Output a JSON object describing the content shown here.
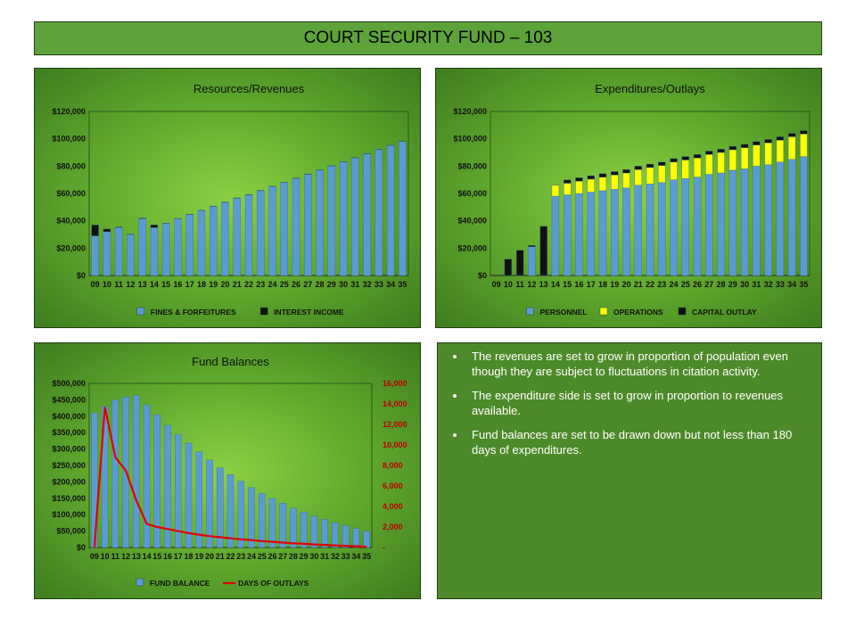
{
  "page_title": "COURT SECURITY FUND – 103",
  "notes": [
    "The revenues are set to grow in proportion  of population even though they are subject to fluctuations in citation activity.",
    "The expenditure side is set to grow in proportion  to revenues available.",
    "Fund balances are set to be drawn down but not less than 180 days of expenditures."
  ],
  "colors": {
    "blue": "#5b9bd5",
    "black": "#111111",
    "yellow": "#ffff00",
    "red": "#e00000",
    "red_axis": "#c00000"
  },
  "chart_data": [
    {
      "type": "stacked-bar",
      "title": "Resources/Revenues",
      "categories": [
        "09",
        "10",
        "11",
        "12",
        "13",
        "14",
        "15",
        "16",
        "17",
        "18",
        "19",
        "20",
        "21",
        "22",
        "23",
        "24",
        "25",
        "26",
        "27",
        "28",
        "29",
        "30",
        "31",
        "32",
        "33",
        "34",
        "35"
      ],
      "ylim": [
        0,
        120000
      ],
      "yticks": [
        0,
        20000,
        40000,
        60000,
        80000,
        100000,
        120000
      ],
      "ytick_labels": [
        "$0",
        "$20,000",
        "$40,000",
        "$60,000",
        "$80,000",
        "$100,000",
        "$120,000"
      ],
      "series": [
        {
          "name": "FINES & FORFEITURES",
          "color": "#5b9bd5",
          "values": [
            29000,
            32000,
            35000,
            30000,
            41500,
            35000,
            38000,
            41500,
            44500,
            47500,
            50500,
            53500,
            56500,
            59000,
            62000,
            65000,
            68000,
            71000,
            74000,
            77000,
            80000,
            83000,
            86000,
            89000,
            92000,
            95000,
            98000
          ]
        },
        {
          "name": "INTEREST INCOME",
          "color": "#111111",
          "values": [
            8000,
            2000,
            500,
            300,
            500,
            2000,
            300,
            300,
            300,
            300,
            300,
            300,
            300,
            300,
            300,
            300,
            300,
            300,
            300,
            300,
            300,
            300,
            300,
            300,
            300,
            300,
            300
          ]
        }
      ]
    },
    {
      "type": "stacked-bar",
      "title": "Expenditures/Outlays",
      "categories": [
        "09",
        "10",
        "11",
        "12",
        "13",
        "14",
        "15",
        "16",
        "17",
        "18",
        "19",
        "20",
        "21",
        "22",
        "23",
        "24",
        "25",
        "26",
        "27",
        "28",
        "29",
        "30",
        "31",
        "32",
        "33",
        "34",
        "35"
      ],
      "ylim": [
        0,
        120000
      ],
      "yticks": [
        0,
        20000,
        40000,
        60000,
        80000,
        100000,
        120000
      ],
      "ytick_labels": [
        "$0",
        "$20,000",
        "$40,000",
        "$60,000",
        "$80,000",
        "$100,000",
        "$120,000"
      ],
      "series": [
        {
          "name": "PERSONNEL",
          "color": "#5b9bd5",
          "values": [
            0,
            0,
            0,
            21000,
            0,
            58000,
            59000,
            60000,
            61000,
            62000,
            63000,
            64000,
            66000,
            67000,
            68000,
            70000,
            71000,
            72000,
            74000,
            75000,
            77000,
            78000,
            80000,
            81000,
            83000,
            85000,
            87000
          ]
        },
        {
          "name": "OPERATIONS",
          "color": "#ffff00",
          "values": [
            0,
            0,
            0,
            0,
            0,
            8000,
            8500,
            9000,
            9500,
            10000,
            10500,
            11000,
            11500,
            12000,
            12500,
            13000,
            13500,
            14000,
            14500,
            15000,
            15000,
            15500,
            15500,
            16000,
            16000,
            16500,
            16500
          ]
        },
        {
          "name": "CAPITAL OUTLAY",
          "color": "#111111",
          "values": [
            0,
            12000,
            18500,
            1000,
            36000,
            0,
            2500,
            2500,
            2500,
            2500,
            2500,
            2500,
            2500,
            2500,
            2500,
            2500,
            2500,
            2500,
            2500,
            2500,
            2500,
            2500,
            2500,
            2500,
            2500,
            2500,
            2500
          ]
        }
      ]
    },
    {
      "type": "bar-line",
      "title": "Fund Balances",
      "categories": [
        "09",
        "10",
        "11",
        "12",
        "13",
        "14",
        "15",
        "16",
        "17",
        "18",
        "19",
        "20",
        "21",
        "22",
        "23",
        "24",
        "25",
        "26",
        "27",
        "28",
        "29",
        "30",
        "31",
        "32",
        "33",
        "34",
        "35"
      ],
      "ylim": [
        0,
        500000
      ],
      "yticks": [
        0,
        50000,
        100000,
        150000,
        200000,
        250000,
        300000,
        350000,
        400000,
        450000,
        500000
      ],
      "ytick_labels": [
        "$0",
        "$50,000",
        "$100,000",
        "$150,000",
        "$200,000",
        "$250,000",
        "$300,000",
        "$350,000",
        "$400,000",
        "$450,000",
        "$500,000"
      ],
      "y2lim": [
        0,
        16000
      ],
      "y2ticks": [
        0,
        2000,
        4000,
        6000,
        8000,
        10000,
        12000,
        14000,
        16000
      ],
      "y2tick_labels": [
        "-",
        "2,000",
        "4,000",
        "6,000",
        "8,000",
        "10,000",
        "12,000",
        "14,000",
        "16,000"
      ],
      "series": [
        {
          "name": "FUND BALANCE",
          "kind": "bar",
          "axis": "left",
          "color": "#5b9bd5",
          "values": [
            410000,
            430000,
            450000,
            458000,
            463000,
            435000,
            405000,
            373000,
            345000,
            318000,
            292000,
            267000,
            243000,
            222000,
            202000,
            183000,
            165000,
            150000,
            135000,
            120000,
            108000,
            96000,
            86000,
            76000,
            67000,
            58000,
            50000
          ]
        },
        {
          "name": "DAYS OF OUTLAYS",
          "kind": "line",
          "axis": "right",
          "color": "#e00000",
          "values": [
            0,
            13700,
            8800,
            7500,
            4600,
            2300,
            2000,
            1800,
            1600,
            1400,
            1250,
            1100,
            1000,
            900,
            800,
            720,
            630,
            560,
            480,
            410,
            360,
            300,
            250,
            200,
            160,
            120,
            80
          ]
        }
      ]
    }
  ]
}
